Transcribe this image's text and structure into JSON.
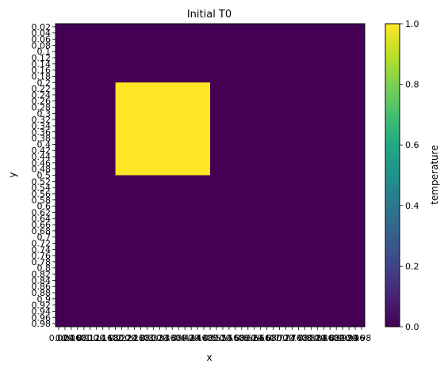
{
  "chart_data": {
    "type": "heatmap",
    "title": "Initial T0",
    "xlabel": "x",
    "ylabel": "y",
    "x_ticks": [
      "0.02",
      "0.04",
      "0.06",
      "0.08",
      "0.1",
      "0.12",
      "0.14",
      "0.16",
      "0.18",
      "0.2",
      "0.22",
      "0.24",
      "0.26",
      "0.28",
      "0.3",
      "0.32",
      "0.34",
      "0.36",
      "0.38",
      "0.4",
      "0.42",
      "0.44",
      "0.46",
      "0.48",
      "0.5",
      "0.52",
      "0.54",
      "0.56",
      "0.58",
      "0.6",
      "0.62",
      "0.64",
      "0.66",
      "0.68",
      "0.7",
      "0.72",
      "0.74",
      "0.76",
      "0.78",
      "0.8",
      "0.82",
      "0.84",
      "0.86",
      "0.88",
      "0.9",
      "0.92",
      "0.94",
      "0.96",
      "0.98"
    ],
    "y_ticks": [
      "0.02",
      "0.04",
      "0.06",
      "0.08",
      "0.1",
      "0.12",
      "0.14",
      "0.16",
      "0.18",
      "0.2",
      "0.22",
      "0.24",
      "0.26",
      "0.28",
      "0.3",
      "0.32",
      "0.34",
      "0.36",
      "0.38",
      "0.4",
      "0.42",
      "0.44",
      "0.46",
      "0.48",
      "0.5",
      "0.52",
      "0.54",
      "0.56",
      "0.58",
      "0.6",
      "0.62",
      "0.64",
      "0.66",
      "0.68",
      "0.7",
      "0.72",
      "0.74",
      "0.76",
      "0.78",
      "0.8",
      "0.82",
      "0.84",
      "0.86",
      "0.88",
      "0.9",
      "0.92",
      "0.94",
      "0.96",
      "0.98"
    ],
    "background_value": 0,
    "hot_region": {
      "value": 1,
      "x_range": [
        0.2,
        0.5
      ],
      "y_range": [
        0.2,
        0.5
      ]
    },
    "colorbar": {
      "label": "temperature",
      "range": [
        0,
        1
      ],
      "ticks": [
        "0.0",
        "0.2",
        "0.4",
        "0.6",
        "0.8",
        "1.0"
      ],
      "colormap": "viridis"
    },
    "colors": {
      "low": "#440154",
      "high": "#fde725"
    }
  }
}
